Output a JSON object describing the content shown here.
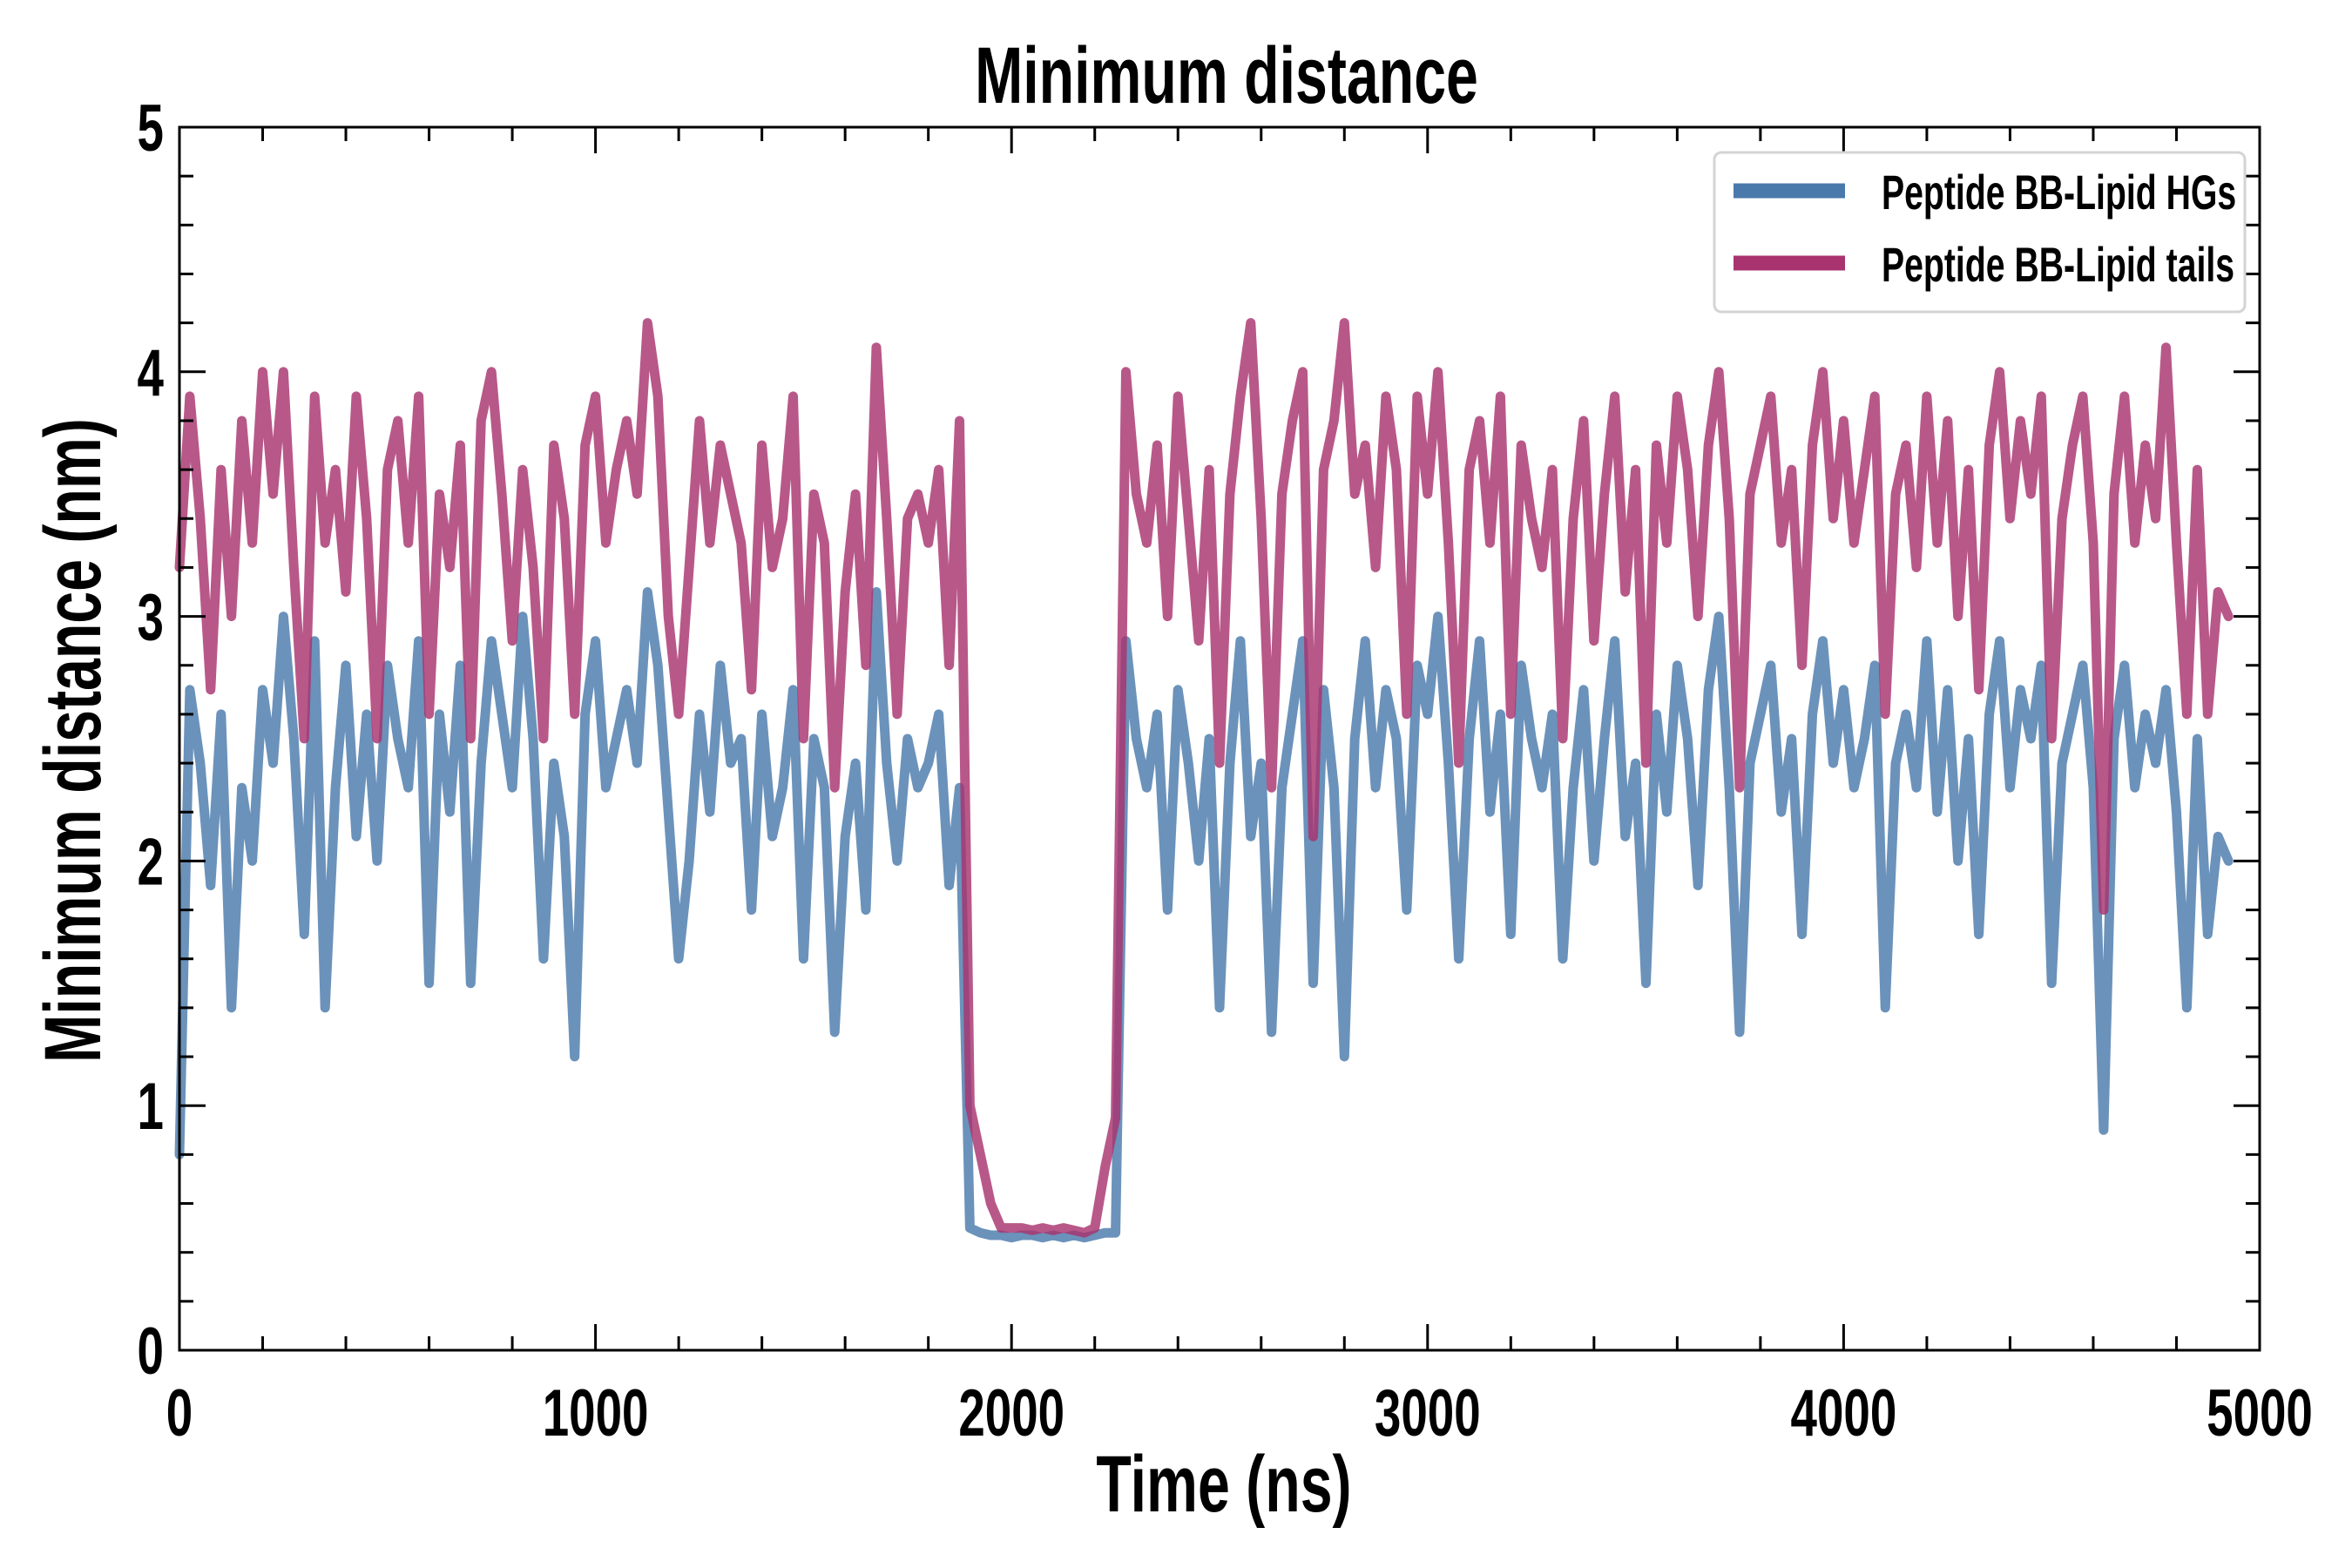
{
  "chart_data": {
    "type": "line",
    "title": "Minimum distance",
    "xlabel": "Time (ns)",
    "ylabel": "Minimum distance (nm)",
    "xlim": [
      0,
      5000
    ],
    "ylim": [
      0,
      5
    ],
    "xticks": [
      0,
      1000,
      2000,
      3000,
      4000,
      5000
    ],
    "xtick_labels": [
      "0",
      "1000",
      "2000",
      "3000",
      "4000",
      "5000"
    ],
    "yticks": [
      0,
      1,
      2,
      3,
      4,
      5
    ],
    "ytick_labels": [
      "0",
      "1",
      "2",
      "3",
      "4",
      "5"
    ],
    "x_minor_step": 200,
    "y_minor_step": 0.2,
    "grid": false,
    "legend_position": "top-right",
    "x_step": 25,
    "series": [
      {
        "name": "Peptide BB-Lipid HGs",
        "color": "#4a7aab",
        "values": [
          0.8,
          2.7,
          2.4,
          1.9,
          2.6,
          1.4,
          2.3,
          2.0,
          2.7,
          2.4,
          3.0,
          2.5,
          1.7,
          2.9,
          1.4,
          2.3,
          2.8,
          2.1,
          2.6,
          2.0,
          2.8,
          2.5,
          2.3,
          2.9,
          1.5,
          2.6,
          2.2,
          2.8,
          1.5,
          2.4,
          2.9,
          2.6,
          2.3,
          3.0,
          2.5,
          1.6,
          2.4,
          2.1,
          1.2,
          2.6,
          2.9,
          2.3,
          2.5,
          2.7,
          2.4,
          3.1,
          2.8,
          2.2,
          1.6,
          2.0,
          2.6,
          2.2,
          2.8,
          2.4,
          2.5,
          1.8,
          2.6,
          2.1,
          2.3,
          2.7,
          1.6,
          2.5,
          2.3,
          1.3,
          2.1,
          2.4,
          1.8,
          3.1,
          2.4,
          2.0,
          2.5,
          2.3,
          2.4,
          2.6,
          1.9,
          2.3,
          0.5,
          0.48,
          0.47,
          0.47,
          0.46,
          0.47,
          0.47,
          0.46,
          0.47,
          0.46,
          0.47,
          0.46,
          0.47,
          0.48,
          0.48,
          2.9,
          2.5,
          2.3,
          2.6,
          1.8,
          2.7,
          2.4,
          2.0,
          2.5,
          1.4,
          2.4,
          2.9,
          2.1,
          2.4,
          1.3,
          2.3,
          2.6,
          2.9,
          1.5,
          2.7,
          2.3,
          1.2,
          2.5,
          2.9,
          2.3,
          2.7,
          2.5,
          1.8,
          2.8,
          2.6,
          3.0,
          2.4,
          1.6,
          2.5,
          2.9,
          2.2,
          2.6,
          1.7,
          2.8,
          2.5,
          2.3,
          2.6,
          1.6,
          2.3,
          2.7,
          2.0,
          2.5,
          2.9,
          2.1,
          2.4,
          1.5,
          2.6,
          2.2,
          2.8,
          2.5,
          1.9,
          2.7,
          3.0,
          2.3,
          1.3,
          2.4,
          2.6,
          2.8,
          2.2,
          2.5,
          1.7,
          2.6,
          2.9,
          2.4,
          2.7,
          2.3,
          2.5,
          2.8,
          1.4,
          2.4,
          2.6,
          2.3,
          2.9,
          2.2,
          2.7,
          2.0,
          2.5,
          1.7,
          2.6,
          2.9,
          2.3,
          2.7,
          2.5,
          2.8,
          1.5,
          2.4,
          2.6,
          2.8,
          2.3,
          0.9,
          2.5,
          2.8,
          2.3,
          2.6,
          2.4,
          2.7,
          2.2,
          1.4,
          2.5,
          1.7,
          2.1,
          2.0
        ]
      },
      {
        "name": "Peptide BB-Lipid tails",
        "color": "#a8336f",
        "values": [
          3.2,
          3.9,
          3.4,
          2.7,
          3.6,
          3.0,
          3.8,
          3.3,
          4.0,
          3.5,
          4.0,
          3.2,
          2.5,
          3.9,
          3.3,
          3.6,
          3.1,
          3.9,
          3.4,
          2.5,
          3.6,
          3.8,
          3.3,
          3.9,
          2.6,
          3.5,
          3.2,
          3.7,
          2.5,
          3.8,
          4.0,
          3.5,
          2.9,
          3.6,
          3.2,
          2.5,
          3.7,
          3.4,
          2.6,
          3.7,
          3.9,
          3.3,
          3.6,
          3.8,
          3.5,
          4.2,
          3.9,
          3.0,
          2.6,
          3.2,
          3.8,
          3.3,
          3.7,
          3.5,
          3.3,
          2.7,
          3.7,
          3.2,
          3.4,
          3.9,
          2.5,
          3.5,
          3.3,
          2.3,
          3.1,
          3.5,
          2.8,
          4.1,
          3.4,
          2.6,
          3.4,
          3.5,
          3.3,
          3.6,
          2.8,
          3.8,
          1.0,
          0.8,
          0.6,
          0.5,
          0.5,
          0.5,
          0.49,
          0.5,
          0.49,
          0.5,
          0.49,
          0.48,
          0.5,
          0.75,
          0.95,
          4.0,
          3.5,
          3.3,
          3.7,
          3.0,
          3.9,
          3.4,
          2.9,
          3.6,
          2.4,
          3.5,
          3.9,
          4.2,
          3.4,
          2.3,
          3.5,
          3.8,
          4.0,
          2.1,
          3.6,
          3.8,
          4.2,
          3.5,
          3.7,
          3.2,
          3.9,
          3.6,
          2.6,
          3.9,
          3.5,
          4.0,
          3.3,
          2.4,
          3.6,
          3.8,
          3.3,
          3.9,
          2.6,
          3.7,
          3.4,
          3.2,
          3.6,
          2.5,
          3.4,
          3.8,
          2.9,
          3.5,
          3.9,
          3.1,
          3.6,
          2.4,
          3.7,
          3.3,
          3.9,
          3.6,
          3.0,
          3.7,
          4.0,
          3.4,
          2.3,
          3.5,
          3.7,
          3.9,
          3.3,
          3.6,
          2.8,
          3.7,
          4.0,
          3.4,
          3.8,
          3.3,
          3.6,
          3.9,
          2.6,
          3.5,
          3.7,
          3.2,
          3.9,
          3.3,
          3.8,
          3.0,
          3.6,
          2.7,
          3.7,
          4.0,
          3.4,
          3.8,
          3.5,
          3.9,
          2.5,
          3.4,
          3.7,
          3.9,
          3.3,
          1.8,
          3.5,
          3.9,
          3.3,
          3.7,
          3.4,
          4.1,
          3.3,
          2.6,
          3.6,
          2.6,
          3.1,
          3.0
        ]
      }
    ]
  }
}
